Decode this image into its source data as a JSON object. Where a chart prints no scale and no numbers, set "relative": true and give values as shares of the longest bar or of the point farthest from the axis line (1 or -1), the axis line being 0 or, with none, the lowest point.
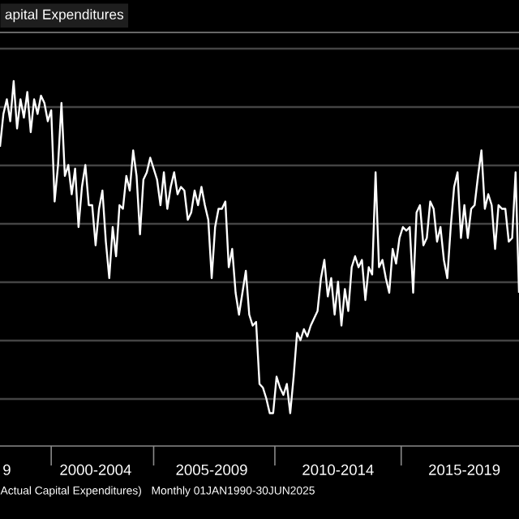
{
  "chart_data": {
    "type": "line",
    "title": "apital Expenditures",
    "relative": true,
    "grid": "y",
    "color": "#ffffff",
    "categories": [
      null,
      null,
      "9",
      null,
      null,
      null,
      null,
      null,
      null,
      null,
      null,
      null,
      null,
      null,
      null,
      null,
      null,
      null,
      null,
      null,
      null,
      null,
      null,
      null,
      null,
      null,
      null,
      null,
      "2000-2004",
      null,
      null,
      null,
      null,
      null,
      null,
      null,
      null,
      null,
      null,
      null,
      null,
      null,
      null,
      null,
      null,
      null,
      null,
      null,
      null,
      null,
      null,
      null,
      null,
      null,
      null,
      null,
      null,
      null,
      null,
      null,
      null,
      null,
      "2005-2009",
      null,
      null,
      null,
      null,
      null,
      null,
      null,
      null,
      null,
      null,
      null,
      null,
      null,
      null,
      null,
      null,
      null,
      null,
      null,
      null,
      null,
      null,
      null,
      null,
      null,
      null,
      null,
      null,
      null,
      null,
      null,
      null,
      null,
      null,
      null,
      null,
      "2010-2014",
      null,
      null,
      null,
      null,
      null,
      null,
      null,
      null,
      null,
      null,
      null,
      null,
      null,
      null,
      null,
      null,
      null,
      null,
      null,
      null,
      null,
      null,
      null,
      null,
      null,
      null,
      null,
      null,
      null,
      null,
      null,
      null,
      null,
      null,
      null,
      null,
      "2015-2019",
      null,
      null,
      null,
      null,
      null,
      null,
      null,
      null,
      null,
      null,
      null,
      null,
      null,
      null,
      null,
      null
    ],
    "values": [
      0.82,
      0.91,
      0.95,
      0.89,
      1.0,
      0.87,
      0.95,
      0.9,
      0.97,
      0.86,
      0.95,
      0.91,
      0.96,
      0.94,
      0.89,
      0.92,
      0.67,
      0.77,
      0.94,
      0.74,
      0.77,
      0.69,
      0.76,
      0.6,
      0.71,
      0.77,
      0.66,
      0.66,
      0.55,
      0.65,
      0.7,
      0.56,
      0.46,
      0.6,
      0.52,
      0.66,
      0.65,
      0.74,
      0.7,
      0.81,
      0.74,
      0.58,
      0.73,
      0.75,
      0.79,
      0.76,
      0.73,
      0.66,
      0.75,
      0.65,
      0.71,
      0.75,
      0.69,
      0.71,
      0.7,
      0.62,
      0.64,
      0.7,
      0.66,
      0.71,
      0.66,
      0.62,
      0.46,
      0.6,
      0.65,
      0.65,
      0.67,
      0.49,
      0.54,
      0.42,
      0.36,
      0.42,
      0.48,
      0.36,
      0.33,
      0.34,
      0.17,
      0.16,
      0.13,
      0.09,
      0.09,
      0.19,
      0.16,
      0.14,
      0.17,
      0.09,
      0.19,
      0.31,
      0.29,
      0.32,
      0.3,
      0.33,
      0.35,
      0.37,
      0.46,
      0.51,
      0.41,
      0.46,
      0.36,
      0.45,
      0.33,
      0.43,
      0.37,
      0.49,
      0.52,
      0.49,
      0.51,
      0.4,
      0.49,
      0.47,
      0.75,
      0.49,
      0.51,
      0.46,
      0.42,
      0.54,
      0.5,
      0.57,
      0.6,
      0.59,
      0.6,
      0.42,
      0.64,
      0.66,
      0.55,
      0.57,
      0.67,
      0.65,
      0.56,
      0.6,
      0.51,
      0.46,
      0.6,
      0.71,
      0.75,
      0.57,
      0.66,
      0.57,
      0.65,
      0.66,
      0.74,
      0.81,
      0.65,
      0.69,
      0.66,
      0.54,
      0.66,
      0.65,
      0.65,
      0.56,
      0.57,
      0.75,
      0.42
    ],
    "annotations": [
      "Actual Capital Expenditures)",
      "Monthly 01JAN1990-30JUN2025"
    ]
  }
}
